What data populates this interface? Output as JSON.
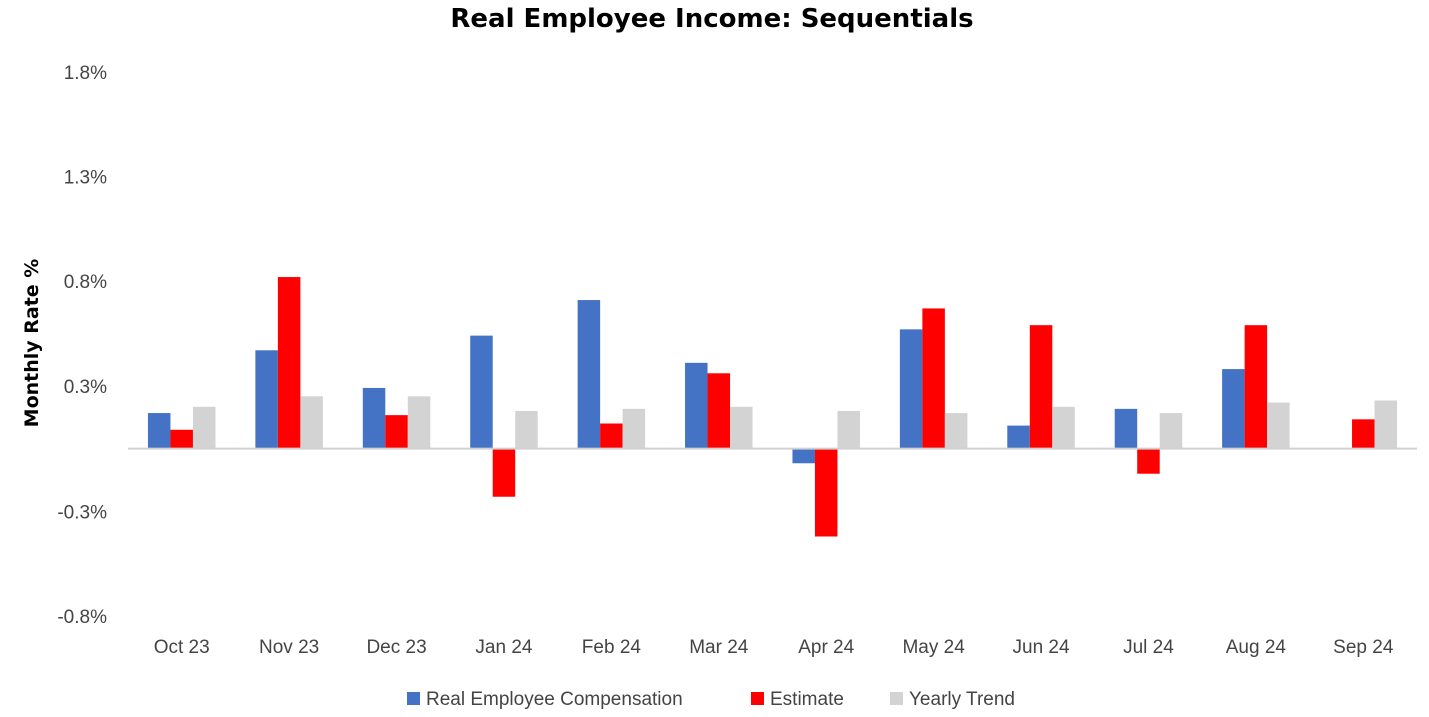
{
  "chart_data": {
    "type": "bar",
    "title": "Real Employee Income: Sequentials",
    "ylabel": "Monthly Rate %",
    "xlabel": "",
    "categories": [
      "Oct 23",
      "Nov 23",
      "Dec 23",
      "Jan 24",
      "Feb 24",
      "Mar 24",
      "Apr 24",
      "May 24",
      "Jun 24",
      "Jul 24",
      "Aug 24",
      "Sep 24"
    ],
    "yticks": [
      1.8,
      1.3,
      0.8,
      0.3,
      -0.3,
      -0.8
    ],
    "ytick_labels": [
      "1.8%",
      "1.3%",
      "0.8%",
      "0.3%",
      "-0.3%",
      "-0.8%"
    ],
    "ylim": [
      -0.8,
      1.8
    ],
    "series": [
      {
        "name": "Real Employee Compensation",
        "color": "#4472C4",
        "values": [
          0.17,
          0.47,
          0.29,
          0.54,
          0.71,
          0.41,
          -0.07,
          0.57,
          0.11,
          0.19,
          0.38,
          null
        ]
      },
      {
        "name": "Estimate",
        "color": "#FF0000",
        "values": [
          0.09,
          0.82,
          0.16,
          -0.23,
          0.12,
          0.36,
          -0.42,
          0.67,
          0.59,
          -0.12,
          0.59,
          0.14
        ]
      },
      {
        "name": "Yearly Trend",
        "color": "#D3D3D3",
        "values": [
          0.2,
          0.25,
          0.25,
          0.18,
          0.19,
          0.2,
          0.18,
          0.17,
          0.2,
          0.17,
          0.22,
          0.23
        ]
      }
    ],
    "legend_position": "bottom",
    "grid": false
  }
}
